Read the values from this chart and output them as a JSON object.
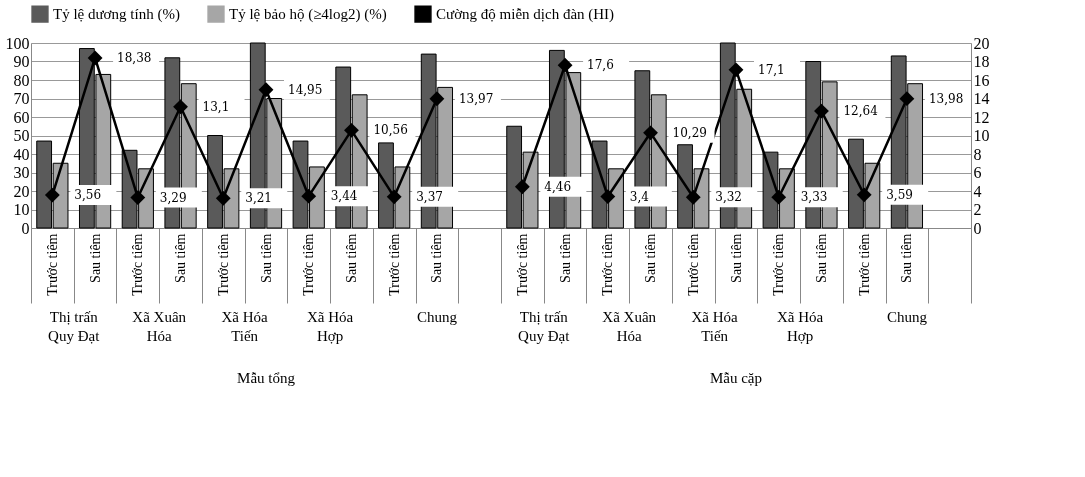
{
  "chart_data": {
    "type": "bar",
    "categories": [
      "Trước tiêm",
      "Sau tiêm",
      "Trước tiêm",
      "Sau tiêm",
      "Trước tiêm",
      "Sau tiêm",
      "Trước tiêm",
      "Sau tiêm",
      "Trước tiêm",
      "Sau tiêm",
      null,
      "Trước tiêm",
      "Sau tiêm",
      "Trước tiêm",
      "Sau tiêm",
      "Trước tiêm",
      "Sau tiêm",
      "Trước tiêm",
      "Sau tiêm",
      "Trước tiêm",
      "Sau tiêm",
      null
    ],
    "series": [
      {
        "name": "Tỷ lệ dương tính (%)",
        "color": "#5a5a5a",
        "values": [
          47,
          97,
          42,
          92,
          50,
          100,
          47,
          87,
          46,
          94,
          null,
          55,
          96,
          47,
          85,
          45,
          100,
          41,
          90,
          48,
          93,
          null
        ]
      },
      {
        "name": "Tỷ lệ bảo hộ (≥4log2) (%)",
        "color": "#a6a6a6",
        "values": [
          35,
          83,
          32,
          78,
          32,
          70,
          33,
          72,
          33,
          76,
          null,
          41,
          84,
          32,
          72,
          32,
          75,
          32,
          79,
          35,
          78,
          null
        ]
      },
      {
        "name": "Cường độ miễn dịch đàn (HI)",
        "color": "#000000",
        "type": "line",
        "axis": "y2",
        "marker": "diamond",
        "values": [
          3.56,
          18.38,
          3.29,
          13.1,
          3.21,
          14.95,
          3.44,
          10.56,
          3.37,
          13.97,
          null,
          4.46,
          17.6,
          3.4,
          10.29,
          3.32,
          17.1,
          3.33,
          12.64,
          3.59,
          13.98,
          null
        ],
        "value_labels": [
          "3,56",
          "18,38",
          "3,29",
          "13,1",
          "3,21",
          "14,95",
          "3,44",
          "10,56",
          "3,37",
          "13,97",
          null,
          "4,46",
          "17,6",
          "3,4",
          "10,29",
          "3,32",
          "17,1",
          "3,33",
          "12,64",
          "3,59",
          "13,98",
          null
        ]
      }
    ],
    "ylim": [
      0,
      100
    ],
    "yticks": [
      0,
      10,
      20,
      30,
      40,
      50,
      60,
      70,
      80,
      90,
      100
    ],
    "y2lim": [
      0,
      20
    ],
    "y2ticks": [
      0,
      2,
      4,
      6,
      8,
      10,
      12,
      14,
      16,
      18,
      20
    ],
    "annotations": [
      "Thị trấn Quy Đạt",
      "Xã Xuân Hóa",
      "Xã Hóa Tiến",
      "Xã Hóa Hợp",
      "Chung",
      "Thị trấn Quy Đạt",
      "Xã Xuân Hóa",
      "Xã Hóa Tiến",
      "Xã Hóa Hợp",
      "Chung",
      "Mẫu tổng",
      "Mẫu cặp"
    ],
    "grid": "y",
    "legend": "top"
  }
}
